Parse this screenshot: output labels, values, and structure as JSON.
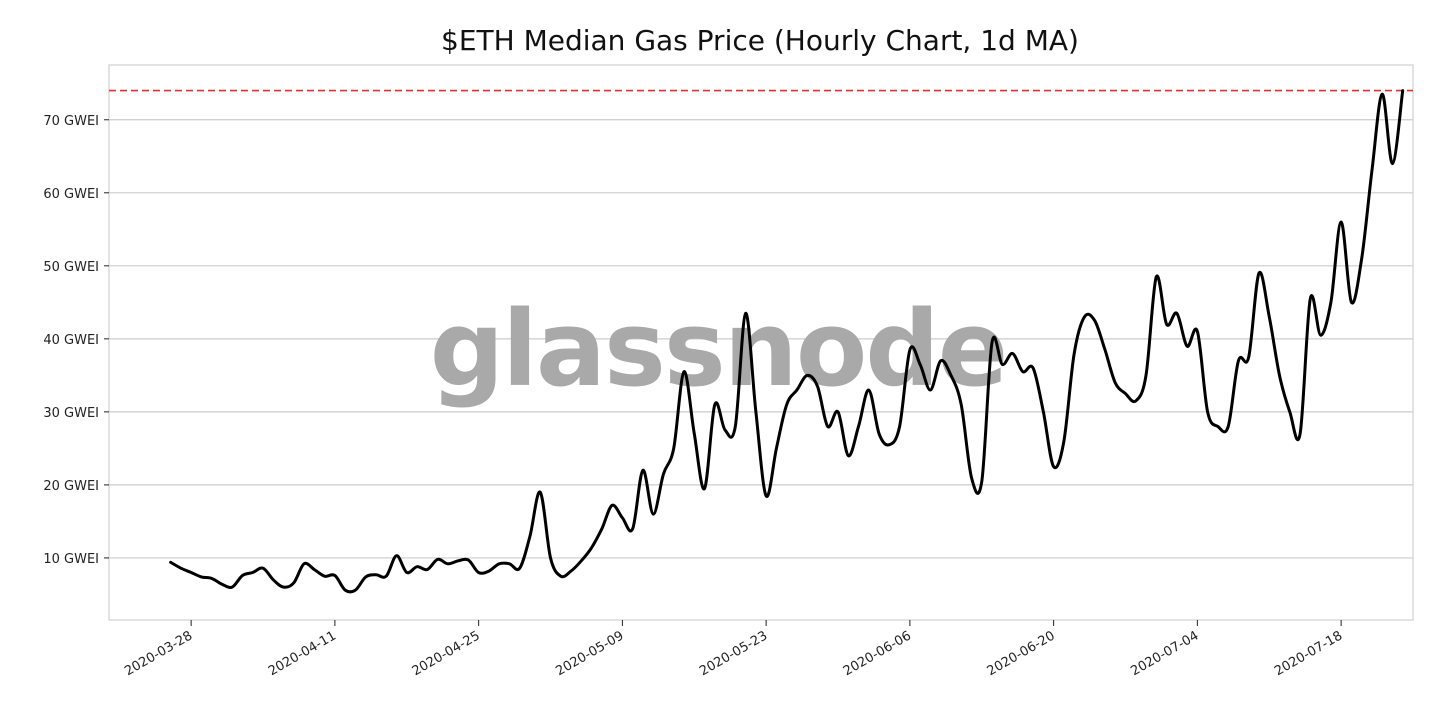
{
  "chart_data": {
    "type": "line",
    "title": "$ETH Median Gas Price (Hourly Chart, 1d MA)",
    "watermark": "glassnode",
    "xlabel": "",
    "ylabel": "",
    "x_range": [
      "2020-03-20",
      "2020-07-25"
    ],
    "ylim": [
      1.5,
      77.5
    ],
    "y_ticks": [
      10,
      20,
      30,
      40,
      50,
      60,
      70
    ],
    "y_tick_labels": [
      "10 GWEI",
      "20 GWEI",
      "30 GWEI",
      "40 GWEI",
      "50 GWEI",
      "60 GWEI",
      "70 GWEI"
    ],
    "x_ticks": [
      "2020-03-28",
      "2020-04-11",
      "2020-04-25",
      "2020-05-09",
      "2020-05-23",
      "2020-06-06",
      "2020-06-20",
      "2020-07-04",
      "2020-07-18"
    ],
    "grid": "horizontal",
    "reference_line": {
      "value": 74,
      "style": "dashed",
      "color": "#e03030"
    },
    "line_color": "#000000",
    "grid_color": "#cccccc",
    "series": [
      {
        "x": [
          "2020-03-26",
          "2020-03-27",
          "2020-03-28",
          "2020-03-29",
          "2020-03-30",
          "2020-03-31",
          "2020-04-01",
          "2020-04-02",
          "2020-04-03",
          "2020-04-04",
          "2020-04-05",
          "2020-04-06",
          "2020-04-07",
          "2020-04-08",
          "2020-04-09",
          "2020-04-10",
          "2020-04-11",
          "2020-04-12",
          "2020-04-13",
          "2020-04-14",
          "2020-04-15",
          "2020-04-16",
          "2020-04-17",
          "2020-04-18",
          "2020-04-19",
          "2020-04-20",
          "2020-04-21",
          "2020-04-22",
          "2020-04-23",
          "2020-04-24",
          "2020-04-25",
          "2020-04-26",
          "2020-04-27",
          "2020-04-28",
          "2020-04-29",
          "2020-04-30",
          "2020-05-01",
          "2020-05-02",
          "2020-05-03",
          "2020-05-04",
          "2020-05-05",
          "2020-05-06",
          "2020-05-07",
          "2020-05-08",
          "2020-05-09",
          "2020-05-10",
          "2020-05-11",
          "2020-05-12",
          "2020-05-13",
          "2020-05-14",
          "2020-05-15",
          "2020-05-16",
          "2020-05-17",
          "2020-05-18",
          "2020-05-19",
          "2020-05-20",
          "2020-05-21",
          "2020-05-22",
          "2020-05-23",
          "2020-05-24",
          "2020-05-25",
          "2020-05-26",
          "2020-05-27",
          "2020-05-28",
          "2020-05-29",
          "2020-05-30",
          "2020-05-31",
          "2020-06-01",
          "2020-06-02",
          "2020-06-03",
          "2020-06-04",
          "2020-06-05",
          "2020-06-06",
          "2020-06-07",
          "2020-06-08",
          "2020-06-09",
          "2020-06-10",
          "2020-06-11",
          "2020-06-12",
          "2020-06-13",
          "2020-06-14",
          "2020-06-15",
          "2020-06-16",
          "2020-06-17",
          "2020-06-18",
          "2020-06-19",
          "2020-06-20",
          "2020-06-21",
          "2020-06-22",
          "2020-06-23",
          "2020-06-24",
          "2020-06-25",
          "2020-06-26",
          "2020-06-27",
          "2020-06-28",
          "2020-06-29",
          "2020-06-30",
          "2020-07-01",
          "2020-07-02",
          "2020-07-03",
          "2020-07-04",
          "2020-07-05",
          "2020-07-06",
          "2020-07-07",
          "2020-07-08",
          "2020-07-09",
          "2020-07-10",
          "2020-07-11",
          "2020-07-12",
          "2020-07-13",
          "2020-07-14",
          "2020-07-15",
          "2020-07-16",
          "2020-07-17",
          "2020-07-18",
          "2020-07-19",
          "2020-07-20",
          "2020-07-21",
          "2020-07-22",
          "2020-07-23",
          "2020-07-24"
        ],
        "values": [
          9.4,
          8.6,
          8.0,
          7.4,
          7.2,
          6.4,
          6.0,
          7.6,
          8.0,
          8.6,
          7.0,
          6.0,
          6.6,
          9.2,
          8.4,
          7.5,
          7.6,
          5.6,
          5.6,
          7.4,
          7.7,
          7.5,
          10.3,
          8.0,
          8.8,
          8.4,
          9.8,
          9.2,
          9.6,
          9.7,
          8.0,
          8.2,
          9.2,
          9.2,
          8.6,
          13.0,
          19.0,
          10.0,
          7.5,
          8.2,
          9.6,
          11.4,
          14.0,
          17.2,
          15.5,
          14.0,
          22.0,
          16.0,
          21.5,
          25.0,
          35.5,
          27.0,
          19.5,
          31.0,
          27.5,
          28.0,
          43.5,
          30.0,
          18.5,
          25.0,
          31.0,
          33.0,
          35.0,
          33.5,
          28.0,
          30.0,
          24.0,
          28.0,
          33.0,
          27.0,
          25.5,
          28.0,
          38.5,
          36.5,
          33.0,
          37.0,
          35.0,
          31.0,
          21.0,
          20.5,
          39.5,
          36.5,
          38.0,
          35.5,
          36.0,
          30.0,
          22.5,
          26.0,
          38.0,
          43.0,
          42.5,
          38.5,
          34.0,
          32.5,
          31.5,
          35.0,
          48.5,
          42.0,
          43.5,
          39.0,
          41.0,
          30.0,
          28.0,
          28.0,
          37.0,
          37.5,
          49.0,
          43.0,
          35.0,
          30.0,
          27.0,
          45.5,
          40.5,
          45.0,
          56.0,
          45.0,
          51.0,
          63.0,
          73.5,
          64.0,
          74.0
        ]
      }
    ]
  }
}
